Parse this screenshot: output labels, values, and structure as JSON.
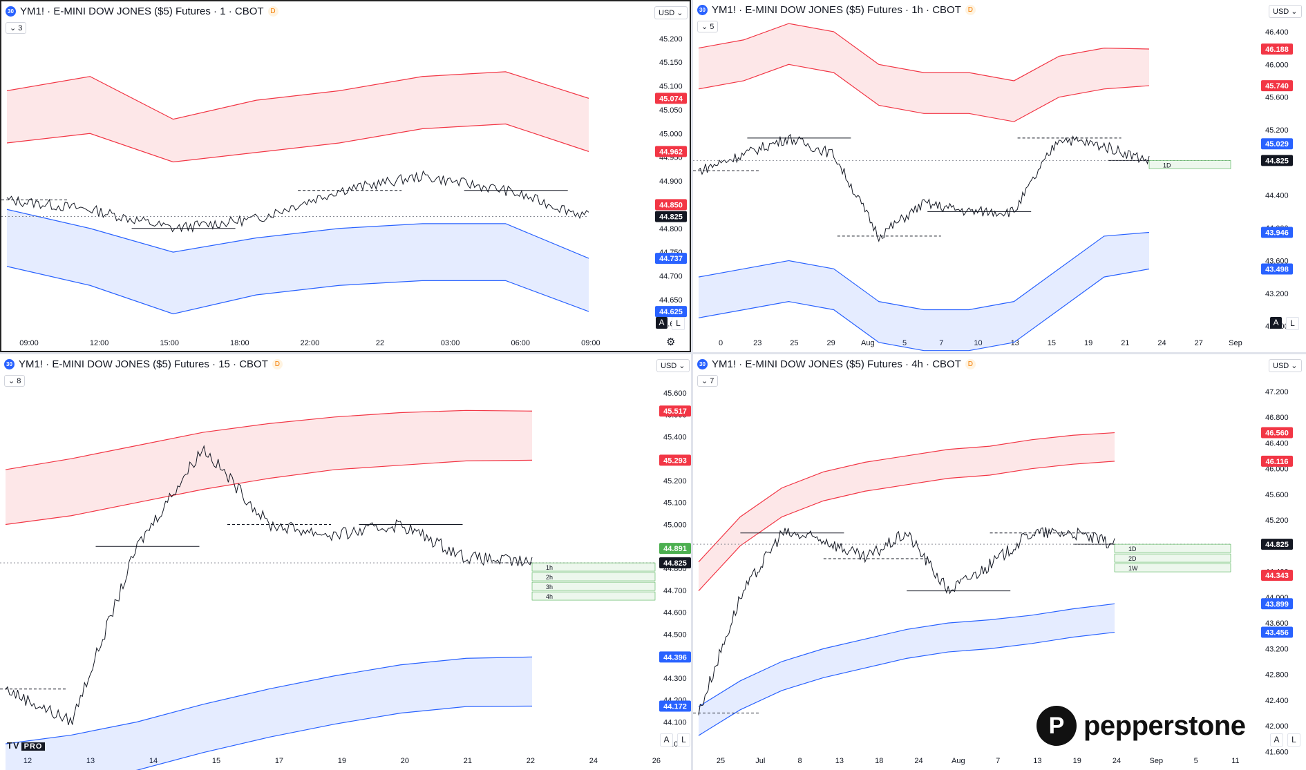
{
  "colors": {
    "up_band": "#f23645",
    "down_band": "#2962ff",
    "accent": "#2962ff",
    "candle": "#131722",
    "green_zone": "#4caf50"
  },
  "panels": [
    {
      "id": "p1",
      "title": "YM1! · E-MINI DOW JONES ($5) Futures · 1 · CBOT",
      "d_badge": "D",
      "count": "3",
      "currency": "USD",
      "y_labels": [
        "45.200",
        "45.150",
        "45.100",
        "45.050",
        "45.000",
        "44.950",
        "44.900",
        "44.850",
        "44.800",
        "44.750",
        "44.700",
        "44.650",
        "44.600"
      ],
      "x_labels": [
        "09:00",
        "12:00",
        "15:00",
        "18:00",
        "22:00",
        "22",
        "03:00",
        "06:00",
        "09:00"
      ],
      "price_tags": [
        {
          "text": "45.074",
          "color": "#f23645",
          "value": 45.074
        },
        {
          "text": "44.962",
          "color": "#f23645",
          "value": 44.962
        },
        {
          "text": "44.850",
          "color": "#f23645",
          "value": 44.85
        },
        {
          "text": "44.825",
          "color": "#131722",
          "value": 44.825
        },
        {
          "text": "44.737",
          "color": "#2962ff",
          "value": 44.737
        },
        {
          "text": "44.625",
          "color": "#2962ff",
          "value": 44.625
        }
      ],
      "al": [
        "A",
        "L"
      ],
      "a_active": true,
      "gear": true
    },
    {
      "id": "p2",
      "title": "YM1! · E-MINI DOW JONES ($5) Futures · 1h · CBOT",
      "d_badge": "D",
      "count": "5",
      "currency": "USD",
      "y_labels": [
        "46.400",
        "46.000",
        "45.600",
        "45.200",
        "44.800",
        "44.400",
        "44.000",
        "43.600",
        "43.200",
        "42.800"
      ],
      "x_labels": [
        "0",
        "23",
        "25",
        "29",
        "Aug",
        "5",
        "7",
        "10",
        "13",
        "15",
        "19",
        "21",
        "24",
        "27",
        "Sep"
      ],
      "price_tags": [
        {
          "text": "46.188",
          "color": "#f23645",
          "value": 46.188
        },
        {
          "text": "45.740",
          "color": "#f23645",
          "value": 45.74
        },
        {
          "text": "45.029",
          "color": "#2962ff",
          "value": 45.029
        },
        {
          "text": "44.825",
          "color": "#131722",
          "value": 44.825
        },
        {
          "text": "43.946",
          "color": "#2962ff",
          "value": 43.946
        },
        {
          "text": "43.498",
          "color": "#2962ff",
          "value": 43.498
        }
      ],
      "zone_labels": [
        "1D"
      ],
      "al": [
        "A",
        "L"
      ],
      "a_active": true
    },
    {
      "id": "p3",
      "title": "YM1! · E-MINI DOW JONES ($5) Futures · 15 · CBOT",
      "d_badge": "D",
      "count": "8",
      "currency": "USD",
      "y_labels": [
        "45.600",
        "45.500",
        "45.400",
        "45.300",
        "45.200",
        "45.100",
        "45.000",
        "44.900",
        "44.800",
        "44.700",
        "44.600",
        "44.500",
        "44.400",
        "44.300",
        "44.200",
        "44.100",
        "44.000"
      ],
      "x_labels": [
        "12",
        "13",
        "14",
        "15",
        "17",
        "19",
        "20",
        "21",
        "22",
        "24",
        "26"
      ],
      "price_tags": [
        {
          "text": "45.517",
          "color": "#f23645",
          "value": 45.517
        },
        {
          "text": "45.293",
          "color": "#f23645",
          "value": 45.293
        },
        {
          "text": "44.891",
          "color": "#4caf50",
          "value": 44.891
        },
        {
          "text": "44.825",
          "color": "#131722",
          "value": 44.825
        },
        {
          "text": "44.396",
          "color": "#2962ff",
          "value": 44.396
        },
        {
          "text": "44.172",
          "color": "#2962ff",
          "value": 44.172
        }
      ],
      "zone_labels": [
        "1h",
        "2h",
        "3h",
        "4h"
      ],
      "al": [
        "A",
        "L"
      ],
      "a_active": false,
      "tv_logo": "PRO"
    },
    {
      "id": "p4",
      "title": "YM1! · E-MINI DOW JONES ($5) Futures · 4h · CBOT",
      "d_badge": "D",
      "count": "7",
      "currency": "USD",
      "y_labels": [
        "47.200",
        "46.800",
        "46.400",
        "46.000",
        "45.600",
        "45.200",
        "44.800",
        "44.400",
        "44.000",
        "43.600",
        "43.200",
        "42.800",
        "42.400",
        "42.000",
        "41.600"
      ],
      "x_labels": [
        "25",
        "Jul",
        "8",
        "13",
        "18",
        "24",
        "Aug",
        "7",
        "13",
        "19",
        "24",
        "Sep",
        "5",
        "11"
      ],
      "price_tags": [
        {
          "text": "46.560",
          "color": "#f23645",
          "value": 46.56
        },
        {
          "text": "46.116",
          "color": "#f23645",
          "value": 46.116
        },
        {
          "text": "44.825",
          "color": "#131722",
          "value": 44.825
        },
        {
          "text": "44.343",
          "color": "#f23645",
          "value": 44.343
        },
        {
          "text": "43.899",
          "color": "#2962ff",
          "value": 43.899
        },
        {
          "text": "43.456",
          "color": "#2962ff",
          "value": 43.456
        }
      ],
      "zone_labels": [
        "1D",
        "2D",
        "1W"
      ],
      "al": [
        "A",
        "L"
      ],
      "a_active": false
    }
  ],
  "brand": {
    "name": "pepperstone",
    "icon_letter": "P"
  },
  "chart_data": [
    {
      "type": "line",
      "timeframe": "1",
      "current": 44.825,
      "ylim": [
        44.58,
        45.22
      ],
      "x": [
        "09:00",
        "12:00",
        "15:00",
        "18:00",
        "22:00",
        "22",
        "03:00",
        "06:00"
      ],
      "series": [
        {
          "values": [
            44.86,
            44.84,
            44.8,
            44.82,
            44.88,
            44.91,
            44.88,
            44.825
          ]
        }
      ],
      "band_upper": [
        45.09,
        45.12,
        45.03,
        45.07,
        45.09,
        45.12,
        45.13,
        45.074
      ],
      "band_upper_inner": [
        44.98,
        45.0,
        44.94,
        44.96,
        44.98,
        45.01,
        45.02,
        44.962
      ],
      "band_lower_inner": [
        44.84,
        44.8,
        44.75,
        44.78,
        44.8,
        44.81,
        44.81,
        44.737
      ],
      "band_lower": [
        44.72,
        44.68,
        44.62,
        44.66,
        44.68,
        44.69,
        44.69,
        44.625
      ]
    },
    {
      "type": "line",
      "timeframe": "1h",
      "current": 44.825,
      "ylim": [
        42.7,
        46.45
      ],
      "x": [
        "23",
        "25",
        "29",
        "Aug",
        "5",
        "7",
        "10",
        "13",
        "15",
        "19",
        "21"
      ],
      "series": [
        {
          "values": [
            44.7,
            44.9,
            45.1,
            44.9,
            43.9,
            44.3,
            44.2,
            44.2,
            45.1,
            45.0,
            44.825
          ]
        }
      ],
      "band_upper": [
        46.2,
        46.3,
        46.5,
        46.4,
        46.0,
        45.9,
        45.9,
        45.8,
        46.1,
        46.2,
        46.188
      ],
      "band_upper_inner": [
        45.7,
        45.8,
        46.0,
        45.9,
        45.5,
        45.4,
        45.4,
        45.3,
        45.6,
        45.7,
        45.74
      ],
      "band_lower_inner": [
        43.4,
        43.5,
        43.6,
        43.5,
        43.1,
        43.0,
        43.0,
        43.1,
        43.5,
        43.9,
        43.946
      ],
      "band_lower": [
        42.9,
        43.0,
        43.1,
        43.0,
        42.6,
        42.5,
        42.5,
        42.6,
        43.0,
        43.4,
        43.498
      ]
    },
    {
      "type": "line",
      "timeframe": "15",
      "current": 44.825,
      "ylim": [
        43.95,
        45.65
      ],
      "x": [
        "12",
        "13",
        "14",
        "15",
        "17",
        "19",
        "20",
        "21",
        "22"
      ],
      "series": [
        {
          "values": [
            44.25,
            44.1,
            44.9,
            45.35,
            45.0,
            44.95,
            45.0,
            44.85,
            44.825
          ]
        }
      ],
      "band_upper": [
        45.25,
        45.3,
        45.36,
        45.42,
        45.46,
        45.49,
        45.51,
        45.52,
        45.517
      ],
      "band_upper_inner": [
        45.0,
        45.04,
        45.1,
        45.16,
        45.21,
        45.25,
        45.27,
        45.29,
        45.293
      ],
      "band_lower_inner": [
        44.0,
        44.04,
        44.1,
        44.18,
        44.25,
        44.31,
        44.36,
        44.39,
        44.396
      ],
      "band_lower": [
        43.78,
        43.82,
        43.88,
        43.96,
        44.03,
        44.09,
        44.14,
        44.17,
        44.172
      ]
    },
    {
      "type": "line",
      "timeframe": "4h",
      "current": 44.825,
      "ylim": [
        41.55,
        47.35
      ],
      "x": [
        "25",
        "Jul",
        "8",
        "13",
        "18",
        "24",
        "Aug",
        "7",
        "13",
        "19",
        "24"
      ],
      "series": [
        {
          "values": [
            42.2,
            44.0,
            45.0,
            44.9,
            44.6,
            45.0,
            44.1,
            44.5,
            45.0,
            45.0,
            44.825
          ]
        }
      ],
      "band_upper": [
        44.55,
        45.25,
        45.7,
        45.95,
        46.1,
        46.2,
        46.3,
        46.35,
        46.45,
        46.52,
        46.56
      ],
      "band_upper_inner": [
        44.1,
        44.8,
        45.25,
        45.5,
        45.65,
        45.75,
        45.85,
        45.9,
        46.0,
        46.07,
        46.116
      ],
      "band_lower_inner": [
        42.3,
        42.7,
        43.0,
        43.2,
        43.35,
        43.5,
        43.6,
        43.65,
        43.72,
        43.82,
        43.899
      ],
      "band_lower": [
        41.85,
        42.25,
        42.55,
        42.75,
        42.9,
        43.05,
        43.15,
        43.2,
        43.28,
        43.38,
        43.456
      ]
    }
  ]
}
